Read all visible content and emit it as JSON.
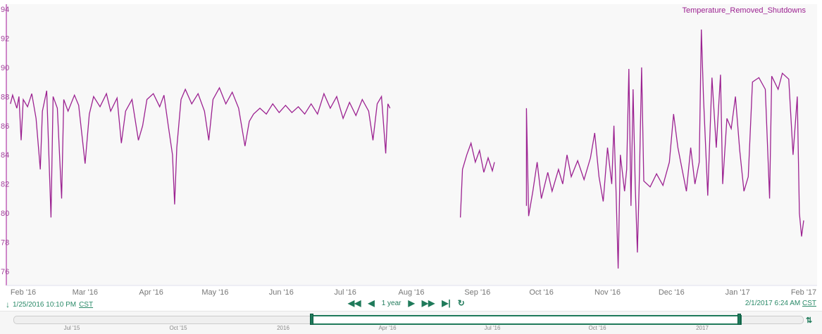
{
  "chart_data": {
    "type": "line",
    "series": [
      {
        "name": "Temperature_Removed_Shutdowns",
        "color": "#9c2291"
      }
    ],
    "legend": "top-right",
    "ylim": [
      74,
      94.5
    ],
    "yticks": [
      76,
      78,
      80,
      82,
      84,
      86,
      88,
      90,
      92,
      94
    ],
    "xlim": [
      "2016-01-25T22:10",
      "2017-02-01T06:24"
    ],
    "xticks": [
      {
        "date": "2016-02-01",
        "label": "Feb '16"
      },
      {
        "date": "2016-03-01",
        "label": "Mar '16"
      },
      {
        "date": "2016-04-01",
        "label": "Apr '16"
      },
      {
        "date": "2016-05-01",
        "label": "May '16"
      },
      {
        "date": "2016-06-01",
        "label": "Jun '16"
      },
      {
        "date": "2016-07-01",
        "label": "Jul '16"
      },
      {
        "date": "2016-08-01",
        "label": "Aug '16"
      },
      {
        "date": "2016-09-01",
        "label": "Sep '16"
      },
      {
        "date": "2016-10-01",
        "label": "Oct '16"
      },
      {
        "date": "2016-11-01",
        "label": "Nov '16"
      },
      {
        "date": "2016-12-01",
        "label": "Dec '16"
      },
      {
        "date": "2017-01-01",
        "label": "Jan '17"
      },
      {
        "date": "2017-02-01",
        "label": "Feb '17"
      }
    ],
    "grid": false,
    "points": [
      [
        "2016-01-26",
        87.5
      ],
      [
        "2016-01-27",
        88.1
      ],
      [
        "2016-01-29",
        87.2
      ],
      [
        "2016-01-30",
        88.0
      ],
      [
        "2016-01-31",
        85.0
      ],
      [
        "2016-02-01",
        87.8
      ],
      [
        "2016-02-03",
        87.3
      ],
      [
        "2016-02-05",
        88.2
      ],
      [
        "2016-02-07",
        86.5
      ],
      [
        "2016-02-09",
        83.0
      ],
      [
        "2016-02-10",
        87.0
      ],
      [
        "2016-02-12",
        88.4
      ],
      [
        "2016-02-14",
        79.7
      ],
      [
        "2016-02-15",
        88.0
      ],
      [
        "2016-02-17",
        87.2
      ],
      [
        "2016-02-19",
        81.0
      ],
      [
        "2016-02-20",
        87.8
      ],
      [
        "2016-02-22",
        87.0
      ],
      [
        "2016-02-25",
        88.1
      ],
      [
        "2016-02-27",
        87.4
      ],
      [
        "2016-03-01",
        83.4
      ],
      [
        "2016-03-03",
        86.8
      ],
      [
        "2016-03-05",
        88.0
      ],
      [
        "2016-03-08",
        87.3
      ],
      [
        "2016-03-11",
        88.2
      ],
      [
        "2016-03-13",
        87.0
      ],
      [
        "2016-03-16",
        87.9
      ],
      [
        "2016-03-18",
        84.8
      ],
      [
        "2016-03-20",
        87.0
      ],
      [
        "2016-03-23",
        87.8
      ],
      [
        "2016-03-26",
        85.0
      ],
      [
        "2016-03-28",
        86.0
      ],
      [
        "2016-03-30",
        87.8
      ],
      [
        "2016-04-02",
        88.2
      ],
      [
        "2016-04-05",
        87.3
      ],
      [
        "2016-04-07",
        88.1
      ],
      [
        "2016-04-09",
        86.0
      ],
      [
        "2016-04-11",
        84.0
      ],
      [
        "2016-04-12",
        80.6
      ],
      [
        "2016-04-13",
        84.5
      ],
      [
        "2016-04-15",
        87.8
      ],
      [
        "2016-04-17",
        88.5
      ],
      [
        "2016-04-20",
        87.5
      ],
      [
        "2016-04-23",
        88.2
      ],
      [
        "2016-04-26",
        87.0
      ],
      [
        "2016-04-28",
        85.0
      ],
      [
        "2016-04-30",
        87.8
      ],
      [
        "2016-05-03",
        88.6
      ],
      [
        "2016-05-06",
        87.5
      ],
      [
        "2016-05-09",
        88.3
      ],
      [
        "2016-05-12",
        87.2
      ],
      [
        "2016-05-15",
        84.6
      ],
      [
        "2016-05-17",
        86.3
      ],
      [
        "2016-05-19",
        86.8
      ],
      [
        "2016-05-22",
        87.2
      ],
      [
        "2016-05-25",
        86.8
      ],
      [
        "2016-05-28",
        87.5
      ],
      [
        "2016-05-31",
        86.9
      ],
      [
        "2016-06-03",
        87.4
      ],
      [
        "2016-06-06",
        86.9
      ],
      [
        "2016-06-09",
        87.3
      ],
      [
        "2016-06-12",
        86.8
      ],
      [
        "2016-06-15",
        87.5
      ],
      [
        "2016-06-18",
        86.8
      ],
      [
        "2016-06-21",
        88.2
      ],
      [
        "2016-06-24",
        87.2
      ],
      [
        "2016-06-27",
        88.0
      ],
      [
        "2016-06-30",
        86.5
      ],
      [
        "2016-07-03",
        87.6
      ],
      [
        "2016-07-06",
        86.7
      ],
      [
        "2016-07-09",
        87.8
      ],
      [
        "2016-07-12",
        87.0
      ],
      [
        "2016-07-14",
        85.0
      ],
      [
        "2016-07-16",
        87.5
      ],
      [
        "2016-07-18",
        88.0
      ],
      [
        "2016-07-20",
        84.1
      ],
      [
        "2016-07-21",
        87.5
      ],
      [
        "2016-07-22",
        87.2
      ],
      null,
      [
        "2016-08-24",
        79.7
      ],
      [
        "2016-08-25",
        83.0
      ],
      [
        "2016-08-27",
        84.0
      ],
      [
        "2016-08-29",
        84.8
      ],
      [
        "2016-08-31",
        83.5
      ],
      [
        "2016-09-02",
        84.3
      ],
      [
        "2016-09-04",
        82.8
      ],
      [
        "2016-09-06",
        83.8
      ],
      [
        "2016-09-08",
        82.9
      ],
      [
        "2016-09-09",
        83.5
      ],
      null,
      [
        "2016-09-24",
        80.5
      ],
      [
        "2016-09-24",
        87.2
      ],
      [
        "2016-09-25",
        79.8
      ],
      [
        "2016-09-27",
        81.5
      ],
      [
        "2016-09-29",
        83.5
      ],
      [
        "2016-10-01",
        81.0
      ],
      [
        "2016-10-04",
        82.8
      ],
      [
        "2016-10-06",
        81.5
      ],
      [
        "2016-10-09",
        83.0
      ],
      [
        "2016-10-11",
        82.0
      ],
      [
        "2016-10-13",
        84.0
      ],
      [
        "2016-10-15",
        82.5
      ],
      [
        "2016-10-18",
        83.6
      ],
      [
        "2016-10-21",
        82.3
      ],
      [
        "2016-10-24",
        83.8
      ],
      [
        "2016-10-26",
        85.5
      ],
      [
        "2016-10-28",
        82.5
      ],
      [
        "2016-10-30",
        80.8
      ],
      [
        "2016-11-01",
        84.5
      ],
      [
        "2016-11-03",
        82.0
      ],
      [
        "2016-11-04",
        86.0
      ],
      [
        "2016-11-05",
        81.5
      ],
      [
        "2016-11-06",
        76.2
      ],
      [
        "2016-11-07",
        84.0
      ],
      [
        "2016-11-09",
        81.5
      ],
      [
        "2016-11-10",
        83.0
      ],
      [
        "2016-11-11",
        89.9
      ],
      [
        "2016-11-12",
        80.5
      ],
      [
        "2016-11-13",
        88.5
      ],
      [
        "2016-11-14",
        82.0
      ],
      [
        "2016-11-15",
        77.3
      ],
      [
        "2016-11-16",
        82.8
      ],
      [
        "2016-11-17",
        90.0
      ],
      [
        "2016-11-18",
        82.2
      ],
      [
        "2016-11-21",
        81.8
      ],
      [
        "2016-11-24",
        82.7
      ],
      [
        "2016-11-27",
        81.9
      ],
      [
        "2016-11-30",
        83.5
      ],
      [
        "2016-12-02",
        86.8
      ],
      [
        "2016-12-04",
        84.5
      ],
      [
        "2016-12-06",
        83.0
      ],
      [
        "2016-12-08",
        81.5
      ],
      [
        "2016-12-10",
        84.5
      ],
      [
        "2016-12-12",
        82.0
      ],
      [
        "2016-12-14",
        83.5
      ],
      [
        "2016-12-15",
        92.6
      ],
      [
        "2016-12-16",
        88.0
      ],
      [
        "2016-12-18",
        81.2
      ],
      [
        "2016-12-20",
        89.3
      ],
      [
        "2016-12-22",
        84.5
      ],
      [
        "2016-12-24",
        89.5
      ],
      [
        "2016-12-25",
        82.0
      ],
      [
        "2016-12-27",
        86.5
      ],
      [
        "2016-12-29",
        85.8
      ],
      [
        "2016-12-31",
        88.0
      ],
      [
        "2017-01-02",
        84.3
      ],
      [
        "2017-01-04",
        81.5
      ],
      [
        "2017-01-06",
        82.5
      ],
      [
        "2017-01-08",
        89.0
      ],
      [
        "2017-01-11",
        89.3
      ],
      [
        "2017-01-14",
        88.5
      ],
      [
        "2017-01-16",
        81.0
      ],
      [
        "2017-01-17",
        89.4
      ],
      [
        "2017-01-20",
        88.5
      ],
      [
        "2017-01-22",
        89.6
      ],
      [
        "2017-01-25",
        89.2
      ],
      [
        "2017-01-27",
        84.0
      ],
      [
        "2017-01-29",
        88.0
      ],
      [
        "2017-01-30",
        80.0
      ],
      [
        "2017-01-31",
        78.4
      ],
      [
        "2017-02-01",
        79.5
      ]
    ]
  },
  "toolbar": {
    "start_date": "1/25/2016 10:10 PM",
    "end_date": "2/1/2017 6:24 AM",
    "timezone": "CST",
    "range_label": "1 year"
  },
  "navigator": {
    "labels": [
      "Jul '15",
      "Oct '15",
      "2016",
      "Apr '16",
      "Jul '16",
      "Oct '16",
      "2017"
    ]
  }
}
